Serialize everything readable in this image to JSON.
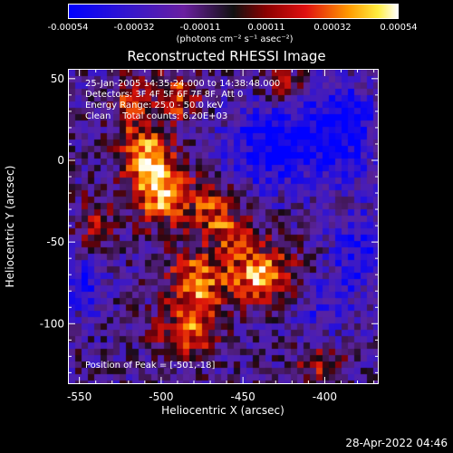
{
  "colorbar": {
    "ticks": [
      "-0.00054",
      "-0.00032",
      "-0.00011",
      "0.00011",
      "0.00032",
      "0.00054"
    ],
    "unit": "(photons cm⁻² s⁻¹ asec⁻²)"
  },
  "title": "Reconstructed RHESSI Image",
  "annotations": {
    "time": "25-Jan-2005 14:35:24.000 to 14:38:48.000",
    "detectors": "Detectors: 3F 4F 5F 6F 7F 8F, Att 0",
    "energy": "Energy Range: 25.0 - 50.0 keV",
    "clean": "Clean    Total counts: 6.20E+03",
    "peak": "Position of Peak = [-501,-18]"
  },
  "date_stamp": "28-Apr-2022 04:46",
  "chart_data": {
    "type": "heatmap",
    "title": "Reconstructed RHESSI Image",
    "xlabel": "Heliocentric X (arcsec)",
    "ylabel": "Heliocentric Y (arcsec)",
    "xlim": [
      -557,
      -367
    ],
    "ylim": [
      -137,
      56
    ],
    "x_ticks": [
      -550,
      -500,
      -450,
      -400
    ],
    "y_ticks": [
      50,
      0,
      -50,
      -100
    ],
    "x_tick_labels": [
      "-550",
      "-500",
      "-450",
      "-400"
    ],
    "y_tick_labels": [
      "50",
      "0",
      "-50",
      "-100"
    ],
    "color_range": [
      -0.00054,
      0.00054
    ],
    "colormap": "blue-purple-red-yellow-white",
    "peak_position": [
      -501,
      -18
    ],
    "sources": [
      {
        "x": -501,
        "y": -18,
        "rx": 12,
        "ry": 14,
        "amp": 1.0
      },
      {
        "x": -510,
        "y": 5,
        "rx": 10,
        "ry": 12,
        "amp": 0.8
      },
      {
        "x": -520,
        "y": 35,
        "rx": 7,
        "ry": 12,
        "amp": 0.6
      },
      {
        "x": -490,
        "y": 40,
        "rx": 10,
        "ry": 10,
        "amp": 0.7
      },
      {
        "x": -440,
        "y": -70,
        "rx": 14,
        "ry": 12,
        "amp": 0.95
      },
      {
        "x": -480,
        "y": -75,
        "rx": 12,
        "ry": 14,
        "amp": 0.85
      },
      {
        "x": -485,
        "y": -105,
        "rx": 14,
        "ry": 10,
        "amp": 0.65
      },
      {
        "x": -470,
        "y": -30,
        "rx": 10,
        "ry": 12,
        "amp": 0.6
      },
      {
        "x": -455,
        "y": -45,
        "rx": 10,
        "ry": 10,
        "amp": 0.55
      },
      {
        "x": -405,
        "y": -125,
        "rx": 10,
        "ry": 8,
        "amp": 0.45
      },
      {
        "x": -540,
        "y": -40,
        "rx": 8,
        "ry": 14,
        "amp": 0.4
      },
      {
        "x": -425,
        "y": 45,
        "rx": 10,
        "ry": 8,
        "amp": 0.45
      }
    ],
    "negative_regions": [
      {
        "x": -430,
        "y": 10,
        "rx": 20,
        "ry": 18,
        "amp": 0.8
      },
      {
        "x": -390,
        "y": 20,
        "rx": 15,
        "ry": 20,
        "amp": 0.7
      },
      {
        "x": -380,
        "y": -55,
        "rx": 12,
        "ry": 18,
        "amp": 0.55
      },
      {
        "x": -548,
        "y": -75,
        "rx": 10,
        "ry": 12,
        "amp": 0.6
      },
      {
        "x": -400,
        "y": -90,
        "rx": 12,
        "ry": 12,
        "amp": 0.4
      }
    ]
  }
}
